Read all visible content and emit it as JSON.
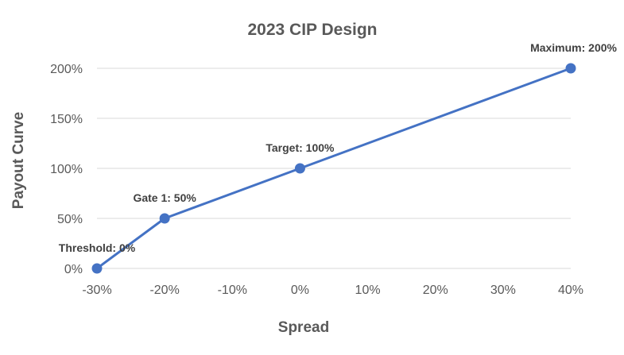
{
  "chart_data": {
    "type": "line",
    "title": "2023 CIP Design",
    "xlabel": "Spread",
    "ylabel": "Payout Curve",
    "x_ticks": [
      "-30%",
      "-20%",
      "-10%",
      "0%",
      "10%",
      "20%",
      "30%",
      "40%"
    ],
    "y_ticks": [
      "0%",
      "50%",
      "100%",
      "150%",
      "200%"
    ],
    "xlim": [
      -30,
      40
    ],
    "ylim": [
      0,
      200
    ],
    "x_unit": "%",
    "y_unit": "%",
    "grid": "horizontal",
    "legend": "none",
    "color": "#4472c4",
    "series": [
      {
        "x": [
          -30,
          -20,
          0,
          40
        ],
        "y": [
          0,
          50,
          100,
          200
        ],
        "labels": [
          "Threshold: 0%",
          "Gate 1: 50%",
          "Target: 100%",
          "Maximum: 200%"
        ]
      }
    ]
  }
}
